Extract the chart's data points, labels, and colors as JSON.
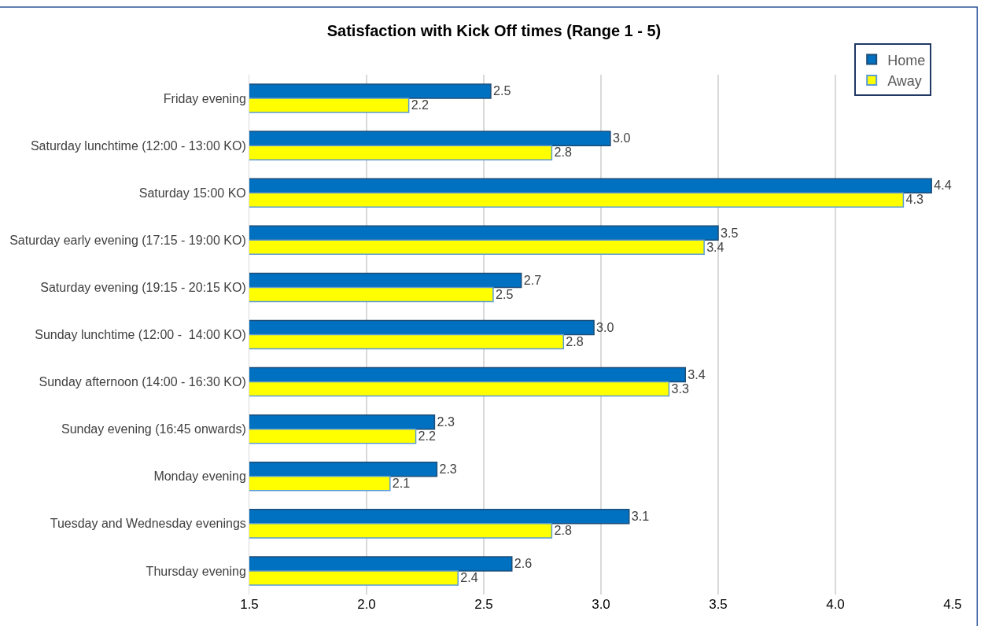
{
  "chart_data": {
    "type": "bar",
    "orientation": "horizontal",
    "title": "Satisfaction with Kick Off times (Range 1 - 5)",
    "categories": [
      "Friday evening",
      "Saturday lunchtime (12:00 - 13:00 KO)",
      "Saturday 15:00 KO",
      "Saturday early evening (17:15 - 19:00 KO)",
      "Saturday evening (19:15 - 20:15 KO)",
      "Sunday lunchtime (12:00 -  14:00 KO)",
      "Sunday afternoon (14:00 - 16:30 KO)",
      "Sunday evening (16:45 onwards)",
      "Monday evening",
      "Tuesday and Wednesday evenings",
      "Thursday evening"
    ],
    "series": [
      {
        "name": "Home",
        "color": "#0070c0",
        "values": [
          2.53,
          3.04,
          4.41,
          3.5,
          2.66,
          2.97,
          3.36,
          2.29,
          2.3,
          3.12,
          2.62
        ],
        "value_labels": [
          "2.5",
          "3.0",
          "4.4",
          "3.5",
          "2.7",
          "3.0",
          "3.4",
          "2.3",
          "2.3",
          "3.1",
          "2.6"
        ]
      },
      {
        "name": "Away",
        "color": "#ffff00",
        "values": [
          2.18,
          2.79,
          4.29,
          3.44,
          2.54,
          2.84,
          3.29,
          2.21,
          2.1,
          2.79,
          2.39
        ],
        "value_labels": [
          "2.2",
          "2.8",
          "4.3",
          "3.4",
          "2.5",
          "2.8",
          "3.3",
          "2.2",
          "2.1",
          "2.8",
          "2.4"
        ]
      }
    ],
    "xlim": [
      1.5,
      4.5
    ],
    "xticks": [
      1.5,
      {
        "value": 2,
        "label": "2.0"
      },
      2.5,
      {
        "value": 3,
        "label": "3.0"
      },
      3.5,
      {
        "value": 4,
        "label": "4.0"
      },
      4.5
    ],
    "grid": "x",
    "legend": "top right"
  }
}
